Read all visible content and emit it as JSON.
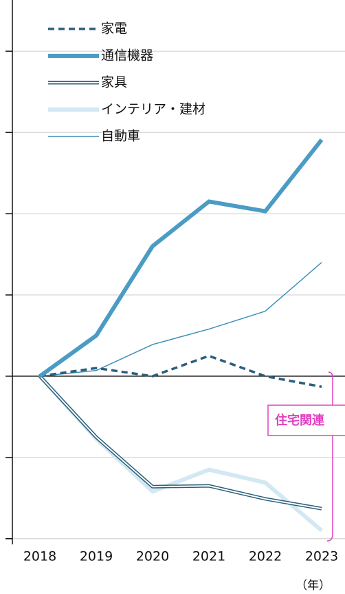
{
  "chart_data": {
    "type": "line",
    "categories": [
      "2018",
      "2019",
      "2020",
      "2021",
      "2022",
      "2023"
    ],
    "x_unit": "（年）",
    "series": [
      {
        "name": "家電",
        "color": "#2a5f7a",
        "style": "dashed",
        "values": [
          0,
          0.1,
          0,
          0.25,
          0,
          -0.13
        ]
      },
      {
        "name": "通信機器",
        "color": "#4a9cc4",
        "style": "thick",
        "values": [
          0,
          0.5,
          1.6,
          2.15,
          2.03,
          2.91
        ]
      },
      {
        "name": "家具",
        "color": "#2a5f7a",
        "style": "double",
        "values": [
          0,
          -0.75,
          -1.36,
          -1.35,
          -1.51,
          -1.63
        ]
      },
      {
        "name": "インテリア・建材",
        "color": "#d3e8f2",
        "style": "thick",
        "values": [
          0,
          -0.77,
          -1.42,
          -1.15,
          -1.31,
          -1.9
        ]
      },
      {
        "name": "自動車",
        "color": "#3d8fb8",
        "style": "thin",
        "values": [
          0,
          0.07,
          0.39,
          0.58,
          0.8,
          1.4
        ]
      }
    ],
    "annotation": "住宅関連",
    "ylim": [
      -2.07,
      4.63
    ],
    "yticks": [
      -2,
      -1,
      0,
      1,
      2,
      3,
      4
    ],
    "grid": true
  }
}
